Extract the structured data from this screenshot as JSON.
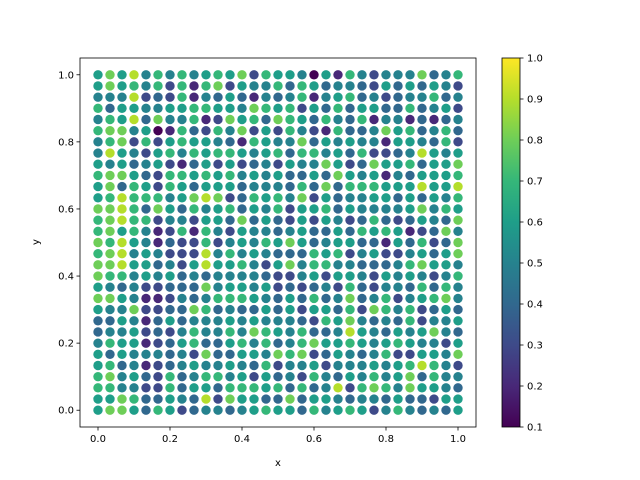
{
  "chart_data": {
    "type": "scatter",
    "title": "",
    "xlabel": "x",
    "ylabel": "y",
    "xlim": [
      -0.05,
      1.05
    ],
    "ylim": [
      -0.05,
      1.05
    ],
    "xticks": [
      0.0,
      0.2,
      0.4,
      0.6,
      0.8,
      1.0
    ],
    "yticks": [
      0.0,
      0.2,
      0.4,
      0.6,
      0.8,
      1.0
    ],
    "xtick_labels": [
      "0.0",
      "0.2",
      "0.4",
      "0.6",
      "0.8",
      "1.0"
    ],
    "ytick_labels": [
      "0.0",
      "0.2",
      "0.4",
      "0.6",
      "0.8",
      "1.0"
    ],
    "grid": false,
    "grid_shape": [
      31,
      31
    ],
    "x_values": "linspace(0, 1, 31)",
    "y_values": "linspace(0, 1, 31)",
    "colormap": "viridis",
    "color_range": [
      0.1,
      1.0
    ],
    "colorbar": {
      "ticks": [
        0.1,
        0.2,
        0.3,
        0.4,
        0.5,
        0.6,
        0.7,
        0.8,
        0.9,
        1.0
      ],
      "tick_labels": [
        "0.1",
        "0.2",
        "0.3",
        "0.4",
        "0.5",
        "0.6",
        "0.7",
        "0.8",
        "0.9",
        "1.0"
      ],
      "placement": "right"
    },
    "z_rows_top_to_bottom": [
      "6869575756768376651627535558457",
      "6867573727836557476455436464653",
      "5559343725464254572567453455745",
      "7466556677665876736474664474563",
      "5769485572386748764754725524245",
      "7885612743758363753274458674574",
      "5783736766542765584656552665473",
      "5965367576776567477564733459656",
      "6564563246363453655863486674668",
      "7886437767675656446486562546667",
      "6847637646664555474847776669669",
      "6797775689834767583645566464657",
      "8897486475674657366746555568576",
      "7897735536648464363653474346548",
      "7867523727536554564464767623485",
      "8796524337356576864566442647348",
      "7895653339575654447673563356468",
      "8896645369667536857755444578665",
      "8775656454555543356366536565357",
      "6545334448566563434537435547475",
      "8865223545777654647458457356785",
      "6558334487454464636647387573464",
      "4465246455565655543768545473556",
      "4556343575575876574459654656854",
      "5766234674467574578667656765536",
      "6465554538446658783465457336658",
      "6745234565565473556355565679753",
      "7856437457756364537546575684755",
      "7755337466477767474593787586654",
      "6687446549386644846654554644366",
      "6886476345545676647567635754546"
    ]
  }
}
